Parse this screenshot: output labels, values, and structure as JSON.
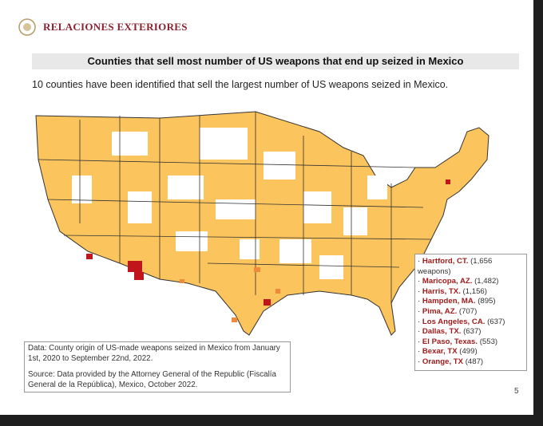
{
  "header": {
    "logo_text": "RELACIONES EXTERIORES",
    "title": "Counties that sell most number of US weapons that end up seized in Mexico",
    "subtitle": "10 counties have been identified that sell the largest number of US weapons seized in Mexico."
  },
  "legend": {
    "items": [
      {
        "name": "Hartford, CT.",
        "count": "(1,656 weapons)"
      },
      {
        "name": "Maricopa, AZ.",
        "count": "(1,482)"
      },
      {
        "name": "Harris, TX.",
        "count": "(1,156)"
      },
      {
        "name": "Hampden, MA.",
        "count": "(895)"
      },
      {
        "name": "Pima, AZ.",
        "count": "(707)"
      },
      {
        "name": "Los Angeles, CA.",
        "count": "(637)"
      },
      {
        "name": "Dallas, TX.",
        "count": "(637)"
      },
      {
        "name": "El Paso, Texas.",
        "count": "(553)"
      },
      {
        "name": "Bexar, TX",
        "count": "(499)"
      },
      {
        "name": "Orange, TX",
        "count": "(487)"
      }
    ]
  },
  "notes": {
    "data": "Data: County origin of US-made weapons seized in Mexico from January 1st, 2020 to September 22nd, 2022.",
    "source": "Source: Data provided by the Attorney General of the Republic (Fiscalía General de la República), Mexico, October 2022."
  },
  "page_number": "5"
}
